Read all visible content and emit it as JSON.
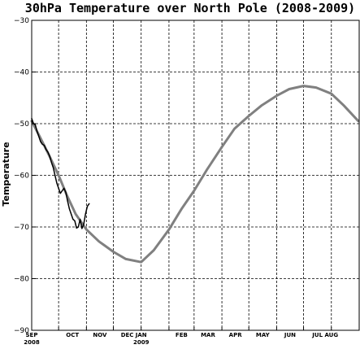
{
  "chart_data": {
    "type": "line",
    "title": "30hPa Temperature over North Pole (2008-2009)",
    "xlabel": "",
    "ylabel": "Temperature",
    "ylim": [
      -90,
      -30
    ],
    "xlim": [
      "2008-09-01",
      "2009-08-31"
    ],
    "yticks": [
      -90,
      -80,
      -70,
      -60,
      -50,
      -40,
      -30
    ],
    "ytick_labels": [
      "-90",
      "-80",
      "-70",
      "-60",
      "-50",
      "-40",
      "-30"
    ],
    "xticks": [
      {
        "date": "2008-09-01",
        "label": "SEP",
        "sublabel": "2008"
      },
      {
        "date": "2008-10-01",
        "label": "OCT",
        "sublabel": ""
      },
      {
        "date": "2008-11-01",
        "label": "NOV",
        "sublabel": ""
      },
      {
        "date": "2008-12-01",
        "label": "DEC",
        "sublabel": ""
      },
      {
        "date": "2009-01-01",
        "label": "JAN",
        "sublabel": "2009"
      },
      {
        "date": "2009-02-01",
        "label": "FEB",
        "sublabel": ""
      },
      {
        "date": "2009-03-01",
        "label": "MAR",
        "sublabel": ""
      },
      {
        "date": "2009-04-01",
        "label": "APR",
        "sublabel": ""
      },
      {
        "date": "2009-05-01",
        "label": "MAY",
        "sublabel": ""
      },
      {
        "date": "2009-06-01",
        "label": "JUN",
        "sublabel": ""
      },
      {
        "date": "2009-07-01",
        "label": "JUL",
        "sublabel": ""
      },
      {
        "date": "2009-08-01",
        "label": "AUG",
        "sublabel": ""
      }
    ],
    "grid": true,
    "series": [
      {
        "color": "#808080",
        "x": [
          "2008-09-01",
          "2008-09-10",
          "2008-09-20",
          "2008-10-01",
          "2008-10-10",
          "2008-10-20",
          "2008-11-01",
          "2008-11-15",
          "2008-12-01",
          "2008-12-15",
          "2009-01-01",
          "2009-01-15",
          "2009-02-01",
          "2009-02-15",
          "2009-03-01",
          "2009-03-15",
          "2009-04-01",
          "2009-04-15",
          "2009-05-01",
          "2009-05-15",
          "2009-06-01",
          "2009-06-15",
          "2009-07-01",
          "2009-07-15",
          "2009-08-01",
          "2009-08-15",
          "2009-08-31"
        ],
        "y": [
          -49.5,
          -52.5,
          -56.0,
          -60.0,
          -63.8,
          -67.5,
          -70.5,
          -72.8,
          -74.8,
          -76.2,
          -76.8,
          -74.5,
          -70.5,
          -66.5,
          -63.0,
          -59.0,
          -54.5,
          -51.0,
          -48.5,
          -46.5,
          -44.6,
          -43.3,
          -42.7,
          -43.0,
          -44.2,
          -46.5,
          -49.5
        ]
      },
      {
        "color": "#000000",
        "x": [
          "2008-09-01",
          "2008-09-03",
          "2008-09-05",
          "2008-09-07",
          "2008-09-09",
          "2008-09-11",
          "2008-09-13",
          "2008-09-15",
          "2008-09-17",
          "2008-09-19",
          "2008-09-21",
          "2008-09-23",
          "2008-09-25",
          "2008-09-27",
          "2008-09-29",
          "2008-10-01",
          "2008-10-03",
          "2008-10-05",
          "2008-10-07",
          "2008-10-09",
          "2008-10-11",
          "2008-10-13",
          "2008-10-15",
          "2008-10-17",
          "2008-10-19",
          "2008-10-21",
          "2008-10-23",
          "2008-10-25",
          "2008-10-27",
          "2008-10-29",
          "2008-10-31",
          "2008-11-02",
          "2008-11-04"
        ],
        "y": [
          -49.0,
          -50.0,
          -50.2,
          -51.5,
          -52.5,
          -53.5,
          -54.0,
          -54.2,
          -55.0,
          -55.5,
          -56.3,
          -57.5,
          -58.5,
          -60.0,
          -61.5,
          -62.5,
          -63.5,
          -63.0,
          -62.5,
          -63.3,
          -65.0,
          -66.5,
          -67.5,
          -68.5,
          -68.8,
          -70.2,
          -70.0,
          -68.5,
          -70.3,
          -69.5,
          -67.5,
          -66.0,
          -65.5
        ]
      }
    ]
  }
}
